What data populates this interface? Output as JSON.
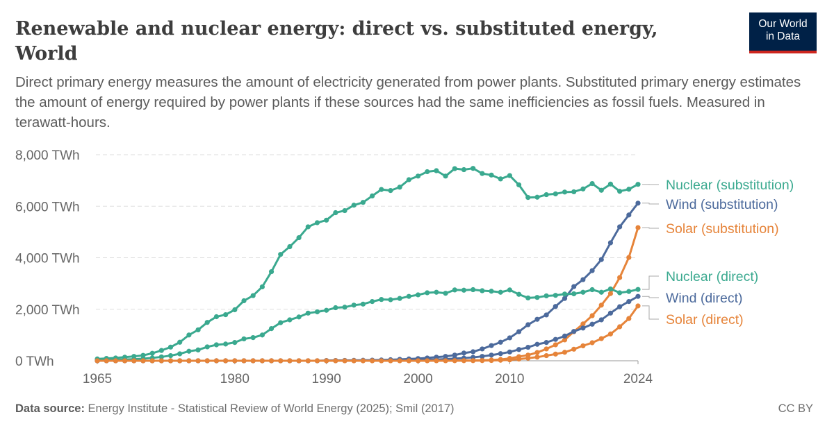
{
  "header": {
    "title": "Renewable and nuclear energy: direct vs. substituted energy, World",
    "subtitle": "Direct primary energy measures the amount of electricity generated from power plants. Substituted primary energy estimates the amount of energy required by power plants if these sources had the same inefficiencies as fossil fuels. Measured in terawatt-hours.",
    "logo": {
      "line1": "Our World",
      "line2": "in Data",
      "bg": "#002147",
      "accent": "#ce261e"
    }
  },
  "footer": {
    "source_label": "Data source:",
    "source_text": "Energy Institute - Statistical Review of World Energy (2025); Smil (2017)",
    "license": "CC BY"
  },
  "chart_data": {
    "type": "line",
    "title": "Renewable and nuclear energy: direct vs. substituted energy, World",
    "xlabel": "",
    "ylabel": "",
    "xlim": [
      1965,
      2024
    ],
    "ylim": [
      0,
      8000
    ],
    "x_ticks": [
      1965,
      1980,
      1990,
      2000,
      2010,
      2024
    ],
    "y_ticks": [
      {
        "value": 0,
        "label": "0 TWh"
      },
      {
        "value": 2000,
        "label": "2,000 TWh"
      },
      {
        "value": 4000,
        "label": "4,000 TWh"
      },
      {
        "value": 6000,
        "label": "6,000 TWh"
      },
      {
        "value": 8000,
        "label": "8,000 TWh"
      }
    ],
    "grid": "horizontal dashed",
    "legend": "right, inline labels",
    "x": [
      1965,
      1966,
      1967,
      1968,
      1969,
      1970,
      1971,
      1972,
      1973,
      1974,
      1975,
      1976,
      1977,
      1978,
      1979,
      1980,
      1981,
      1982,
      1983,
      1984,
      1985,
      1986,
      1987,
      1988,
      1989,
      1990,
      1991,
      1992,
      1993,
      1994,
      1995,
      1996,
      1997,
      1998,
      1999,
      2000,
      2001,
      2002,
      2003,
      2004,
      2005,
      2006,
      2007,
      2008,
      2009,
      2010,
      2011,
      2012,
      2013,
      2014,
      2015,
      2016,
      2017,
      2018,
      2019,
      2020,
      2021,
      2022,
      2023,
      2024
    ],
    "series": [
      {
        "name": "Nuclear (substitution)",
        "color": "#3aa98f",
        "values": [
          70,
          90,
          110,
          140,
          170,
          210,
          290,
          400,
          530,
          720,
          1000,
          1200,
          1490,
          1710,
          1790,
          1980,
          2330,
          2530,
          2870,
          3460,
          4130,
          4430,
          4780,
          5200,
          5360,
          5460,
          5750,
          5830,
          6040,
          6150,
          6400,
          6650,
          6610,
          6740,
          7030,
          7170,
          7340,
          7380,
          7170,
          7460,
          7420,
          7470,
          7270,
          7210,
          7060,
          7190,
          6830,
          6340,
          6350,
          6450,
          6480,
          6550,
          6560,
          6670,
          6880,
          6620,
          6860,
          6580,
          6660,
          6850
        ]
      },
      {
        "name": "Wind (substitution)",
        "color": "#4c6a9c",
        "values": [
          0,
          0,
          0,
          0,
          0,
          0,
          0,
          0,
          0,
          0,
          0,
          0,
          0,
          0,
          0,
          0,
          0,
          0,
          0,
          0,
          0,
          0,
          0,
          0,
          0,
          10,
          12,
          14,
          17,
          20,
          25,
          30,
          40,
          55,
          70,
          85,
          110,
          140,
          170,
          220,
          300,
          350,
          460,
          590,
          720,
          890,
          1130,
          1400,
          1610,
          1780,
          2110,
          2420,
          2880,
          3150,
          3500,
          3930,
          4580,
          5200,
          5660,
          6120
        ]
      },
      {
        "name": "Solar (substitution)",
        "color": "#e6843a",
        "values": [
          0,
          0,
          0,
          0,
          0,
          0,
          0,
          0,
          0,
          0,
          0,
          0,
          0,
          0,
          0,
          0,
          0,
          0,
          0,
          0,
          0,
          0,
          0,
          0,
          0,
          1,
          1,
          1,
          1,
          1,
          2,
          2,
          2,
          2,
          2,
          3,
          3,
          4,
          5,
          7,
          10,
          14,
          20,
          30,
          50,
          90,
          160,
          220,
          320,
          460,
          620,
          810,
          1130,
          1430,
          1750,
          2160,
          2610,
          3230,
          4010,
          5170
        ]
      },
      {
        "name": "Nuclear (direct)",
        "color": "#3aa98f",
        "values": [
          25,
          35,
          40,
          50,
          60,
          80,
          110,
          150,
          200,
          270,
          370,
          420,
          540,
          620,
          650,
          710,
          850,
          900,
          1000,
          1250,
          1480,
          1590,
          1700,
          1850,
          1900,
          1960,
          2060,
          2080,
          2160,
          2200,
          2300,
          2380,
          2370,
          2420,
          2500,
          2560,
          2640,
          2660,
          2620,
          2750,
          2740,
          2760,
          2720,
          2700,
          2660,
          2750,
          2580,
          2440,
          2460,
          2520,
          2540,
          2590,
          2600,
          2660,
          2760,
          2660,
          2790,
          2640,
          2690,
          2770
        ]
      },
      {
        "name": "Wind (direct)",
        "color": "#4c6a9c",
        "values": [
          0,
          0,
          0,
          0,
          0,
          0,
          0,
          0,
          0,
          0,
          0,
          0,
          0,
          0,
          0,
          0,
          0,
          0,
          0,
          0,
          0,
          0,
          0,
          0,
          0,
          4,
          4,
          5,
          6,
          7,
          8,
          9,
          12,
          16,
          21,
          31,
          38,
          52,
          63,
          85,
          104,
          133,
          170,
          220,
          276,
          342,
          437,
          523,
          640,
          710,
          830,
          960,
          1140,
          1270,
          1420,
          1590,
          1850,
          2100,
          2300,
          2500
        ]
      },
      {
        "name": "Solar (direct)",
        "color": "#e6843a",
        "values": [
          0,
          0,
          0,
          0,
          0,
          0,
          0,
          0,
          0,
          0,
          0,
          0,
          0,
          0,
          0,
          0,
          0,
          0,
          0,
          0,
          0,
          0,
          0,
          0,
          0,
          0,
          0,
          0,
          0,
          0,
          0,
          0,
          0,
          0,
          0,
          1,
          1,
          2,
          2,
          3,
          4,
          5,
          7,
          12,
          21,
          34,
          65,
          100,
          140,
          200,
          260,
          330,
          450,
          580,
          700,
          860,
          1040,
          1320,
          1640,
          2130
        ]
      }
    ]
  }
}
